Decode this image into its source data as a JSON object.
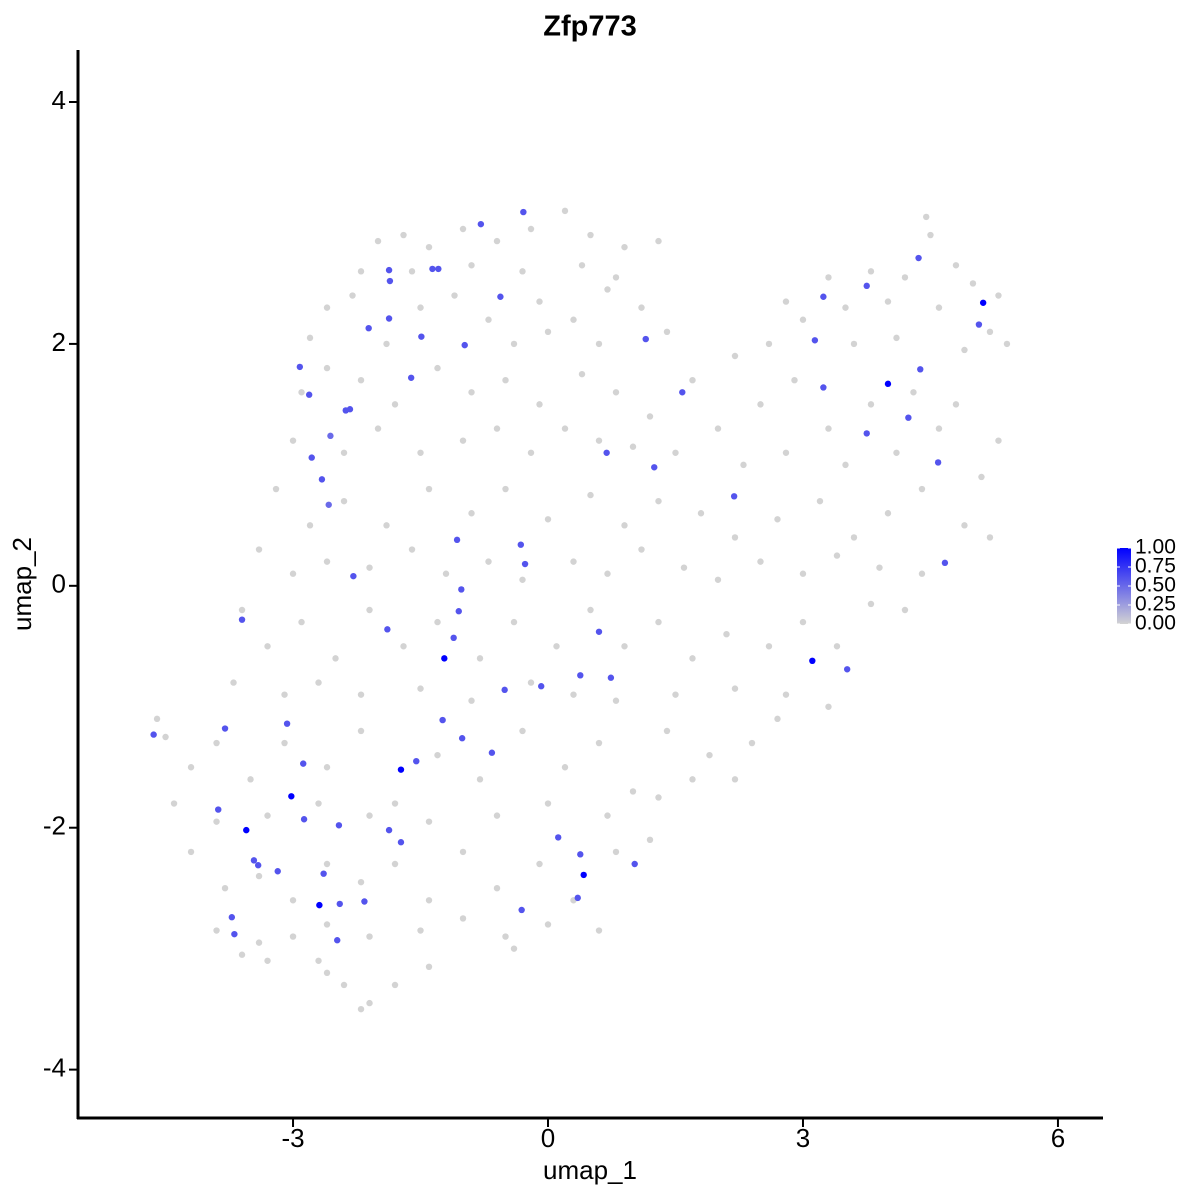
{
  "chart_data": {
    "type": "scatter",
    "title": "Zfp773",
    "x_label": "umap_1",
    "y_label": "umap_2",
    "xlim": [
      -5.53,
      6.53
    ],
    "ylim": [
      -4.4,
      4.43
    ],
    "xticks": [
      -3,
      0,
      3,
      6
    ],
    "yticks": [
      -4,
      -2,
      0,
      2,
      4
    ],
    "low_color": "#d3d3d3",
    "high_color": "#0000ff",
    "colorbar": {
      "lim": [
        0,
        1
      ],
      "ticks": [
        {
          "value": 0,
          "label": "0.00"
        },
        {
          "value": 0.25,
          "label": "0.25"
        },
        {
          "value": 0.5,
          "label": "0.50"
        },
        {
          "value": 0.75,
          "label": "0.75"
        },
        {
          "value": 1,
          "label": "1.00"
        }
      ]
    },
    "x": [
      -2.0,
      -1.7,
      -1.4,
      -1.0,
      -0.6,
      -0.2,
      0.2,
      0.5,
      0.9,
      1.3,
      -2.2,
      -1.6,
      -0.9,
      -0.3,
      0.4,
      0.8,
      -2.6,
      -2.3,
      -1.5,
      -1.1,
      -0.7,
      -0.1,
      0.3,
      0.7,
      1.1,
      1.4,
      -2.8,
      -1.9,
      -0.4,
      0.0,
      0.6,
      3.3,
      3.8,
      4.2,
      4.5,
      4.45,
      4.8,
      5.0,
      5.3,
      2.8,
      3.0,
      3.5,
      4.0,
      4.6,
      5.2,
      5.4,
      2.2,
      2.6,
      3.6,
      4.1,
      4.9,
      -2.9,
      -2.6,
      -2.2,
      -1.8,
      -1.3,
      -0.9,
      -0.5,
      -0.1,
      0.4,
      0.8,
      1.2,
      1.7,
      2.0,
      2.5,
      2.9,
      3.3,
      3.8,
      4.3,
      4.8,
      5.3,
      -3.0,
      -2.4,
      -2.0,
      -1.5,
      -1.0,
      -0.6,
      -0.2,
      0.2,
      0.6,
      1.0,
      1.5,
      2.3,
      2.8,
      3.5,
      4.1,
      4.6,
      5.1,
      -3.2,
      -2.8,
      -2.4,
      -1.9,
      -1.4,
      -0.9,
      -0.5,
      0.0,
      0.5,
      0.9,
      1.3,
      1.8,
      2.2,
      2.7,
      3.2,
      3.6,
      4.0,
      4.4,
      4.9,
      5.2,
      -3.4,
      -3.0,
      -2.6,
      -2.1,
      -1.6,
      -1.2,
      -0.7,
      -0.3,
      0.3,
      0.7,
      1.1,
      1.6,
      2.0,
      2.5,
      3.0,
      3.4,
      3.9,
      4.4,
      -3.6,
      -3.3,
      -2.9,
      -2.5,
      -2.1,
      -1.7,
      -1.3,
      -0.8,
      -0.4,
      0.1,
      0.5,
      0.9,
      1.3,
      1.7,
      2.1,
      2.6,
      3.0,
      3.4,
      3.8,
      4.2,
      -3.7,
      -3.1,
      -2.7,
      -2.2,
      -1.5,
      -0.9,
      -0.2,
      0.3,
      0.8,
      1.5,
      2.2,
      2.8,
      3.3,
      -4.6,
      -4.2,
      -3.9,
      -3.5,
      -3.1,
      -2.6,
      -2.2,
      -1.8,
      -1.3,
      -0.8,
      -0.3,
      0.2,
      0.6,
      1.0,
      1.4,
      1.9,
      2.4,
      2.7,
      -4.4,
      -3.9,
      -3.3,
      -2.7,
      -2.1,
      -1.4,
      -0.6,
      0.0,
      0.7,
      1.3,
      1.7,
      2.2,
      -4.2,
      -3.8,
      -3.4,
      -3.0,
      -2.6,
      -2.2,
      -1.8,
      -1.4,
      -1.0,
      -0.6,
      -0.1,
      0.3,
      0.8,
      1.2,
      -3.9,
      -3.4,
      -3.0,
      -2.6,
      -2.1,
      -1.5,
      -1.0,
      -0.5,
      0.0,
      0.6,
      -3.3,
      -2.7,
      -2.4,
      -2.2,
      -2.1,
      -2.6,
      -1.8,
      -1.4,
      -0.4,
      -3.6,
      -4.5,
      -0.29,
      -0.79,
      -1.87,
      -1.86,
      -1.36,
      -1.29,
      -0.56,
      -1.87,
      -2.11,
      -1.49,
      -0.98,
      1.15,
      -2.92,
      -1.61,
      -2.81,
      -2.38,
      -2.33,
      -2.56,
      -2.78,
      -2.66,
      -2.58,
      0.69,
      1.25,
      1.58,
      2.19,
      3.14,
      3.24,
      3.24,
      3.75,
      4.0,
      3.75,
      4.36,
      4.38,
      4.24,
      5.12,
      5.07,
      4.59,
      4.67,
      -0.32,
      -0.27,
      -1.07,
      -1.02,
      -1.05,
      -1.11,
      -1.22,
      -2.29,
      -3.6,
      -1.89,
      0.6,
      0.38,
      0.74,
      -0.08,
      -0.51,
      3.11,
      3.52,
      -1.24,
      -1.01,
      -0.66,
      -3.07,
      -3.8,
      -4.64,
      -2.88,
      -1.55,
      -1.73,
      -3.02,
      -3.88,
      -2.87,
      -3.55,
      -2.46,
      -1.87,
      -1.73,
      0.12,
      0.38,
      0.42,
      1.02,
      -3.46,
      -3.41,
      -3.18,
      -2.64,
      -2.69,
      -2.45,
      -2.16,
      0.35,
      -0.31,
      -3.72,
      -3.69,
      -2.48
    ],
    "y": [
      2.85,
      2.9,
      2.8,
      2.95,
      2.85,
      2.95,
      3.1,
      2.9,
      2.8,
      2.85,
      2.6,
      2.6,
      2.65,
      2.6,
      2.65,
      2.55,
      2.3,
      2.4,
      2.3,
      2.4,
      2.2,
      2.35,
      2.2,
      2.45,
      2.3,
      2.1,
      2.05,
      2.0,
      2.0,
      2.1,
      2.0,
      2.55,
      2.6,
      2.55,
      2.9,
      3.05,
      2.65,
      2.5,
      2.4,
      2.35,
      2.2,
      2.3,
      2.35,
      2.3,
      2.1,
      2.0,
      1.9,
      2.0,
      2.0,
      2.05,
      1.95,
      1.6,
      1.8,
      1.7,
      1.5,
      1.8,
      1.6,
      1.7,
      1.5,
      1.75,
      1.6,
      1.4,
      1.7,
      1.3,
      1.5,
      1.7,
      1.3,
      1.5,
      1.6,
      1.5,
      1.2,
      1.2,
      1.1,
      1.3,
      1.1,
      1.2,
      1.3,
      1.1,
      1.3,
      1.2,
      1.15,
      1.1,
      1.0,
      1.1,
      1.0,
      1.1,
      1.3,
      0.9,
      0.8,
      0.5,
      0.7,
      0.5,
      0.8,
      0.6,
      0.8,
      0.55,
      0.75,
      0.5,
      0.7,
      0.6,
      0.4,
      0.55,
      0.7,
      0.4,
      0.6,
      0.8,
      0.5,
      0.4,
      0.3,
      0.1,
      0.2,
      0.15,
      0.3,
      0.1,
      0.2,
      0.05,
      0.2,
      0.1,
      0.3,
      0.15,
      0.05,
      0.2,
      0.1,
      0.25,
      0.15,
      0.1,
      -0.2,
      -0.5,
      -0.3,
      -0.6,
      -0.2,
      -0.5,
      -0.3,
      -0.6,
      -0.3,
      -0.5,
      -0.2,
      -0.5,
      -0.3,
      -0.6,
      -0.4,
      -0.5,
      -0.3,
      -0.5,
      -0.15,
      -0.2,
      -0.8,
      -0.9,
      -0.8,
      -0.9,
      -0.85,
      -0.95,
      -0.8,
      -0.9,
      -0.95,
      -0.9,
      -0.85,
      -0.9,
      -1.0,
      -1.1,
      -1.5,
      -1.3,
      -1.6,
      -1.3,
      -1.5,
      -1.2,
      -1.8,
      -1.4,
      -1.6,
      -1.2,
      -1.5,
      -1.3,
      -1.7,
      -1.2,
      -1.4,
      -1.3,
      -1.1,
      -1.8,
      -1.95,
      -1.9,
      -1.8,
      -1.9,
      -1.95,
      -1.9,
      -1.8,
      -1.9,
      -1.75,
      -1.6,
      -1.6,
      -2.2,
      -2.5,
      -2.4,
      -2.6,
      -2.3,
      -2.45,
      -2.3,
      -2.6,
      -2.2,
      -2.5,
      -2.3,
      -2.6,
      -2.2,
      -2.1,
      -2.85,
      -2.95,
      -2.9,
      -2.8,
      -2.9,
      -2.85,
      -2.75,
      -2.9,
      -2.8,
      -2.85,
      -3.1,
      -3.1,
      -3.3,
      -3.5,
      -3.45,
      -3.2,
      -3.3,
      -3.15,
      -3.0,
      -3.05,
      -1.25,
      3.09,
      2.99,
      2.61,
      2.52,
      2.62,
      2.62,
      2.39,
      2.21,
      2.13,
      2.06,
      1.99,
      2.04,
      1.81,
      1.72,
      1.58,
      1.45,
      1.46,
      1.24,
      1.06,
      0.88,
      0.67,
      1.1,
      0.98,
      1.6,
      0.74,
      2.03,
      2.39,
      1.64,
      2.48,
      1.67,
      1.26,
      2.71,
      1.79,
      1.39,
      2.34,
      2.16,
      1.02,
      0.19,
      0.34,
      0.18,
      0.38,
      -0.03,
      -0.21,
      -0.43,
      -0.6,
      0.08,
      -0.28,
      -0.36,
      -0.38,
      -0.74,
      -0.76,
      -0.83,
      -0.86,
      -0.62,
      -0.69,
      -1.11,
      -1.26,
      -1.38,
      -1.14,
      -1.18,
      -1.23,
      -1.47,
      -1.45,
      -1.52,
      -1.74,
      -1.85,
      -1.93,
      -2.02,
      -1.98,
      -2.02,
      -2.12,
      -2.08,
      -2.22,
      -2.39,
      -2.3,
      -2.27,
      -2.31,
      -2.36,
      -2.38,
      -2.64,
      -2.63,
      -2.61,
      -2.58,
      -2.68,
      -2.74,
      -2.88,
      -2.93
    ],
    "values": [
      0,
      0,
      0,
      0,
      0,
      0,
      0,
      0,
      0,
      0,
      0,
      0,
      0,
      0,
      0,
      0,
      0,
      0,
      0,
      0,
      0,
      0,
      0,
      0,
      0,
      0,
      0,
      0,
      0,
      0,
      0,
      0,
      0,
      0,
      0,
      0,
      0,
      0,
      0,
      0,
      0,
      0,
      0,
      0,
      0,
      0,
      0,
      0,
      0,
      0,
      0,
      0,
      0,
      0,
      0,
      0,
      0,
      0,
      0,
      0,
      0,
      0,
      0,
      0,
      0,
      0,
      0,
      0,
      0,
      0,
      0,
      0,
      0,
      0,
      0,
      0,
      0,
      0,
      0,
      0,
      0,
      0,
      0,
      0,
      0,
      0,
      0,
      0,
      0,
      0,
      0,
      0,
      0,
      0,
      0,
      0,
      0,
      0,
      0,
      0,
      0,
      0,
      0,
      0,
      0,
      0,
      0,
      0,
      0,
      0,
      0,
      0,
      0,
      0,
      0,
      0,
      0,
      0,
      0,
      0,
      0,
      0,
      0,
      0,
      0,
      0,
      0,
      0,
      0,
      0,
      0,
      0,
      0,
      0,
      0,
      0,
      0,
      0,
      0,
      0,
      0,
      0,
      0,
      0,
      0,
      0,
      0,
      0,
      0,
      0,
      0,
      0,
      0,
      0,
      0,
      0,
      0,
      0,
      0,
      0,
      0,
      0,
      0,
      0,
      0,
      0,
      0,
      0,
      0,
      0,
      0,
      0,
      0,
      0,
      0,
      0,
      0,
      0,
      0,
      0,
      0,
      0,
      0,
      0,
      0,
      0,
      0,
      0,
      0,
      0,
      0,
      0,
      0,
      0,
      0,
      0,
      0,
      0,
      0,
      0,
      0,
      0,
      0,
      0,
      0,
      0,
      0,
      0,
      0,
      0,
      0,
      0,
      0,
      0,
      0,
      0,
      0,
      0,
      0,
      0,
      0,
      0,
      0,
      0,
      0.6,
      0.6,
      0.6,
      0.6,
      0.6,
      0.6,
      0.6,
      0.6,
      0.6,
      0.6,
      0.6,
      0.6,
      0.6,
      0.6,
      0.6,
      0.6,
      0.6,
      0.5,
      0.6,
      0.6,
      0.5,
      0.6,
      0.6,
      0.6,
      0.6,
      0.6,
      0.6,
      0.6,
      0.6,
      1,
      0.6,
      0.6,
      0.6,
      0.6,
      1,
      0.6,
      0.6,
      0.6,
      0.6,
      0.6,
      0.6,
      0.6,
      0.6,
      0.6,
      1,
      0.6,
      0.6,
      0.6,
      0.6,
      0.6,
      0.6,
      0.6,
      0.6,
      1,
      0.6,
      0.6,
      0.6,
      0.6,
      0.6,
      0.6,
      0.6,
      0.6,
      0.6,
      1,
      1,
      0.6,
      0.6,
      1,
      0.6,
      0.6,
      0.6,
      0.6,
      0.6,
      1,
      0.6,
      0.6,
      0.6,
      0.6,
      0.6,
      1,
      0.6,
      0.6,
      0.6,
      0.6,
      0.6,
      0.6,
      0.6
    ]
  }
}
